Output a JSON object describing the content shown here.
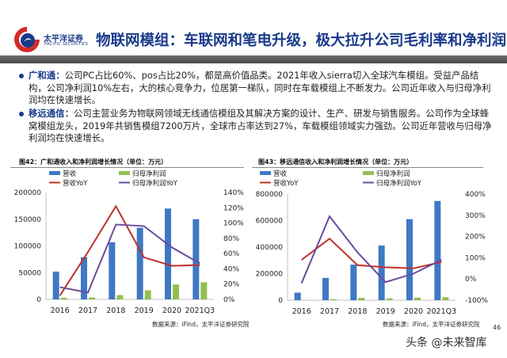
{
  "header": {
    "brand_cn": "太平洋证券",
    "brand_en": "PACIFIC SECURITIES",
    "title": "物联网模组：车联网和笔电升级，极大拉升公司毛利率和净利润"
  },
  "bullets": [
    {
      "label": "广和通",
      "sep": "：",
      "text": "公司PC占比60%、pos占比20%，都是高价值品类。2021年收入sierra切入全球汽车模组。受益产品结构，公司净利润10%左右，大的核心竞争力，位居第一梯队，同时在车载模组上不断发力。公司近年收入与归母净利润均在快速增长。"
    },
    {
      "label": "移远通信",
      "sep": "：",
      "text": "公司主营业务为物联网领域无线通信模组及其解决方案的设计、生产、研发与销售服务。公司作为全球蜂窝模组龙头，2019年共销售模组7200万片，全球市占率达到27%，车载模组领域实力强劲。公司近年营收与归母净利润均在快速增长。"
    }
  ],
  "colors": {
    "brand": "#1a3a8a",
    "revenue": "#3f78c4",
    "net_profit": "#92c050",
    "revenue_yoy": "#c0302a",
    "net_profit_yoy": "#6a4c9c"
  },
  "chart_data": [
    {
      "type": "bar",
      "title": "图42：广和通收入和净利润增长情况（单位：万元）",
      "source": "数据来源：iFind，太平洋证券研究院",
      "categories": [
        "2016",
        "2017",
        "2018",
        "2019",
        "2020",
        "2021Q3"
      ],
      "ylim": [
        0,
        200000
      ],
      "yticks": [
        "0",
        "50000",
        "100000",
        "150000",
        "200000"
      ],
      "y2lim": [
        0,
        140
      ],
      "y2ticks": [
        "0%",
        "20%",
        "40%",
        "60%",
        "80%",
        "100%",
        "120%",
        "140%"
      ],
      "series": [
        {
          "name": "营收",
          "kind": "bar",
          "axis": "left",
          "values": [
            52000,
            79000,
            107000,
            134000,
            170000,
            150000
          ]
        },
        {
          "name": "归母净利润",
          "kind": "bar",
          "axis": "left",
          "values": [
            3000,
            3500,
            8000,
            17000,
            28000,
            32000
          ]
        },
        {
          "name": "营收YoY",
          "kind": "line",
          "axis": "right",
          "values": [
            5,
            62,
            122,
            55,
            44,
            45
          ]
        },
        {
          "name": "归母净利润YoY",
          "kind": "line",
          "axis": "right",
          "values": [
            16,
            9,
            98,
            96,
            68,
            47
          ]
        }
      ]
    },
    {
      "type": "bar",
      "title": "图43：移远通信收入和净利润增长情况（单位：万元）",
      "source": "数据来源：iFind，太平洋证券研究院",
      "categories": [
        "2016",
        "2017",
        "2018",
        "2019",
        "2020",
        "2021Q3"
      ],
      "ylim": [
        0,
        800000
      ],
      "yticks": [
        "0",
        "200000",
        "400000",
        "600000",
        "800000"
      ],
      "y2lim": [
        -100,
        400
      ],
      "y2ticks": [
        "-100%",
        "0%",
        "100%",
        "200%",
        "300%",
        "400%"
      ],
      "series": [
        {
          "name": "营收",
          "kind": "bar",
          "axis": "left",
          "values": [
            57000,
            168000,
            268000,
            412000,
            611000,
            748000
          ]
        },
        {
          "name": "归母净利润",
          "kind": "bar",
          "axis": "left",
          "values": [
            1000,
            8000,
            18000,
            14000,
            19000,
            23000
          ]
        },
        {
          "name": "营收YoY",
          "kind": "line",
          "axis": "right",
          "values": [
            90,
            190,
            65,
            55,
            50,
            80
          ]
        },
        {
          "name": "归母净利润YoY",
          "kind": "line",
          "axis": "right",
          "values": [
            -20,
            295,
            125,
            -15,
            25,
            90
          ]
        }
      ]
    }
  ],
  "page_number": "46",
  "watermark": "头条 @未来智库"
}
